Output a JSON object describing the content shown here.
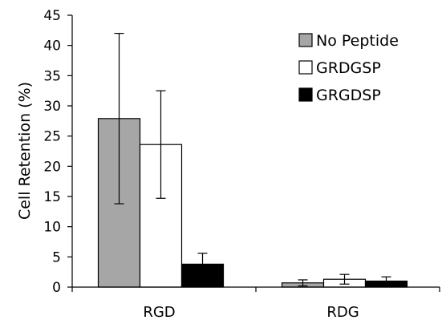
{
  "chart_data": {
    "type": "bar",
    "title": "",
    "xlabel": "",
    "ylabel": "Cell Retention (%)",
    "ylim": [
      0,
      45
    ],
    "yticks": [
      0,
      5,
      10,
      15,
      20,
      25,
      30,
      35,
      40,
      45
    ],
    "grid": false,
    "legend_position": "top-right",
    "categories": [
      "RGD",
      "RDG"
    ],
    "series": [
      {
        "name": "No Peptide",
        "color": "#a6a6a6",
        "values": [
          27.9,
          0.7
        ],
        "error": [
          14.1,
          0.5
        ]
      },
      {
        "name": "GRDGSP",
        "color": "#ffffff",
        "values": [
          23.6,
          1.3
        ],
        "error": [
          8.9,
          0.8
        ]
      },
      {
        "name": "GRGDSP",
        "color": "#000000",
        "values": [
          3.8,
          1.0
        ],
        "error": [
          1.8,
          0.7
        ]
      }
    ]
  }
}
